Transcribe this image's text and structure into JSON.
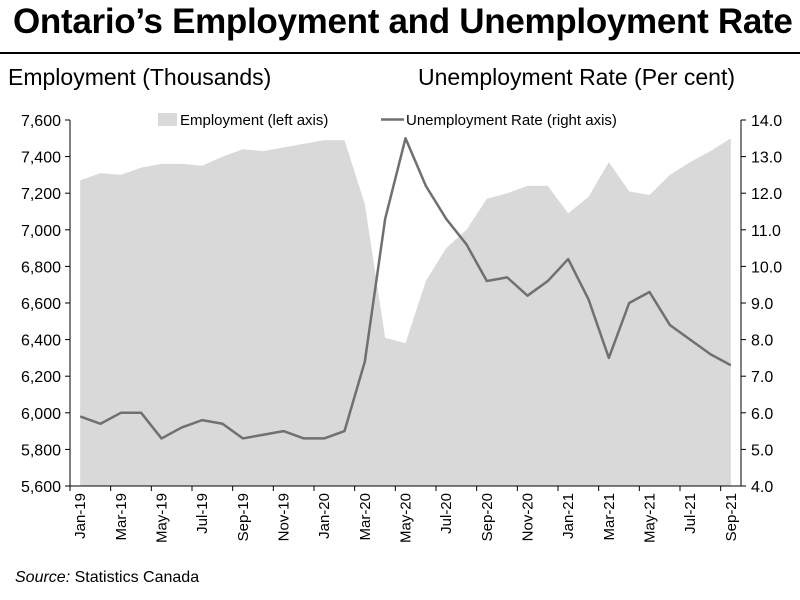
{
  "title": "Ontario’s Employment and Unemployment Rate",
  "source_label": "Source:",
  "source_text": " Statistics Canada",
  "chart_data": {
    "type": "area",
    "title": "Ontario’s Employment and Unemployment Rate",
    "ylabel_left": "Employment (Thousands)",
    "ylabel_right": "Unemployment Rate (Per cent)",
    "x": [
      "Jan-19",
      "Feb-19",
      "Mar-19",
      "Apr-19",
      "May-19",
      "Jun-19",
      "Jul-19",
      "Aug-19",
      "Sep-19",
      "Oct-19",
      "Nov-19",
      "Dec-19",
      "Jan-20",
      "Feb-20",
      "Mar-20",
      "Apr-20",
      "May-20",
      "Jun-20",
      "Jul-20",
      "Aug-20",
      "Sep-20",
      "Oct-20",
      "Nov-20",
      "Dec-20",
      "Jan-21",
      "Feb-21",
      "Mar-21",
      "Apr-21",
      "May-21",
      "Jun-21",
      "Jul-21",
      "Aug-21",
      "Sep-21"
    ],
    "x_tick_labels": [
      "Jan-19",
      "Mar-19",
      "May-19",
      "Jul-19",
      "Sep-19",
      "Nov-19",
      "Jan-20",
      "Mar-20",
      "May-20",
      "Jul-20",
      "Sep-20",
      "Nov-20",
      "Jan-21",
      "Mar-21",
      "May-21",
      "Jul-21",
      "Sep-21"
    ],
    "series": [
      {
        "name": "Employment (left axis)",
        "type": "area",
        "axis": "left",
        "color": "#d9d9d9",
        "values": [
          7270,
          7310,
          7300,
          7340,
          7360,
          7360,
          7350,
          7400,
          7440,
          7430,
          7450,
          7470,
          7490,
          7490,
          7140,
          6410,
          6380,
          6720,
          6900,
          7000,
          7170,
          7200,
          7240,
          7240,
          7090,
          7180,
          7370,
          7210,
          7190,
          7300,
          7370,
          7430,
          7500
        ]
      },
      {
        "name": "Unemployment Rate (right axis)",
        "type": "line",
        "axis": "right",
        "color": "#707070",
        "values": [
          5.9,
          5.7,
          6.0,
          6.0,
          5.3,
          5.6,
          5.8,
          5.7,
          5.3,
          5.4,
          5.5,
          5.3,
          5.3,
          5.5,
          7.4,
          11.3,
          13.5,
          12.2,
          11.3,
          10.6,
          9.6,
          9.7,
          9.2,
          9.6,
          10.2,
          9.1,
          7.5,
          9.0,
          9.3,
          8.4,
          8.0,
          7.6,
          7.3
        ]
      }
    ],
    "ylim_left": [
      5600,
      7600
    ],
    "yticks_left": [
      "5,600",
      "5,800",
      "6,000",
      "6,200",
      "6,400",
      "6,600",
      "6,800",
      "7,000",
      "7,200",
      "7,400",
      "7,600"
    ],
    "ylim_right": [
      4.0,
      14.0
    ],
    "yticks_right": [
      "4.0",
      "5.0",
      "6.0",
      "7.0",
      "8.0",
      "9.0",
      "10.0",
      "11.0",
      "12.0",
      "13.0",
      "14.0"
    ],
    "grid": false,
    "legend_position": "top"
  }
}
